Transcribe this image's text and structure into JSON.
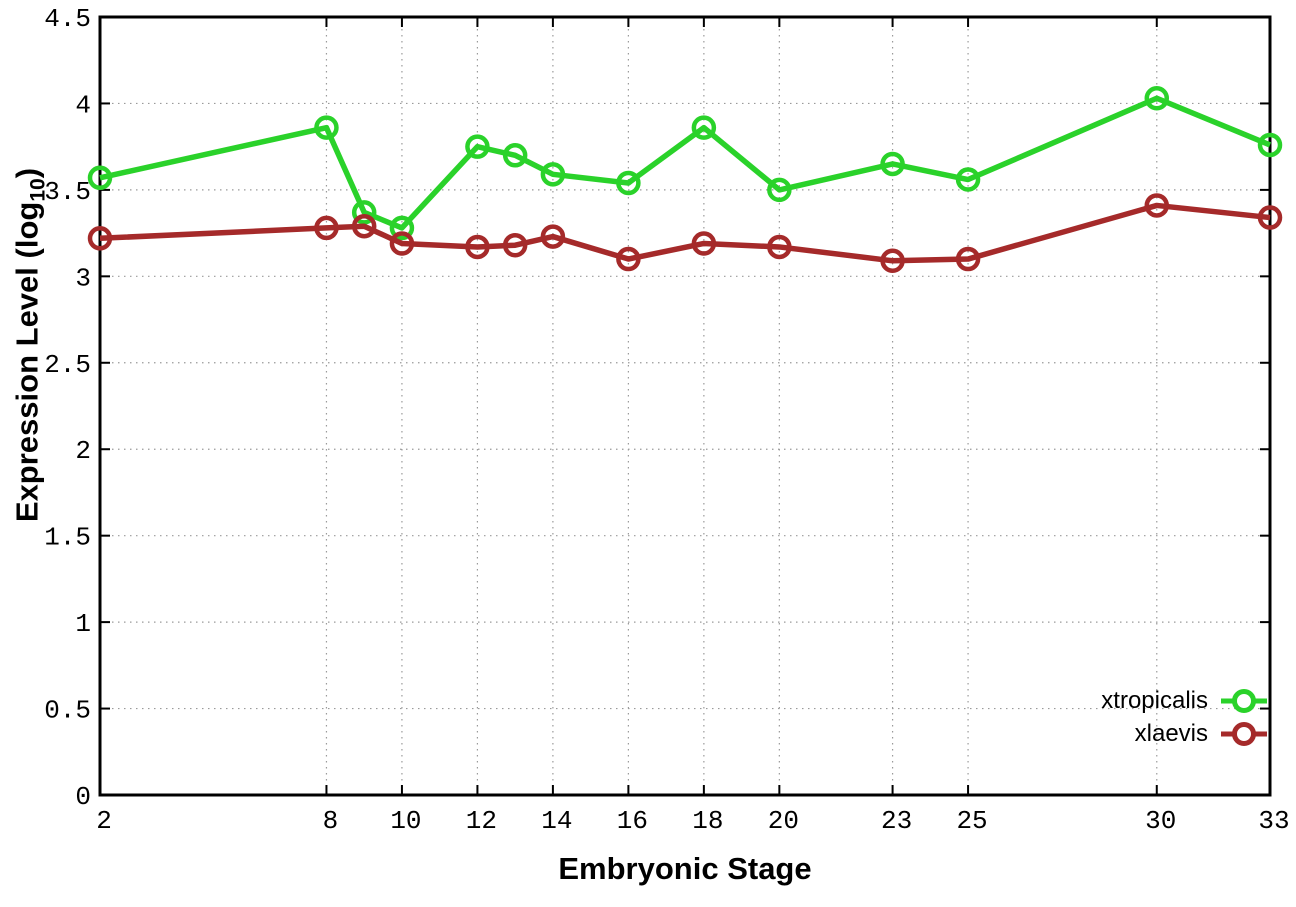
{
  "chart_data": {
    "type": "line",
    "title": "",
    "xlabel": "Embryonic Stage",
    "ylabel": "Expression Level (log10)",
    "ylabel_parts": {
      "main": "Expression Level (log",
      "sub": "10",
      "close": ")"
    },
    "x": [
      2,
      8,
      9,
      10,
      12,
      13,
      14,
      16,
      18,
      20,
      23,
      25,
      30,
      33
    ],
    "xlim": [
      2,
      33
    ],
    "ylim": [
      0,
      4.5
    ],
    "xtick_values": [
      2,
      8,
      10,
      12,
      14,
      16,
      18,
      20,
      23,
      25,
      30,
      33
    ],
    "xtick_labels": [
      "2",
      "8",
      "10",
      "12",
      "14",
      "16",
      "18",
      "20",
      "23",
      "25",
      "30",
      "33"
    ],
    "ytick_values": [
      0,
      0.5,
      1,
      1.5,
      2,
      2.5,
      3,
      3.5,
      4,
      4.5
    ],
    "ytick_labels": [
      "0",
      "0.5",
      "1",
      "1.5",
      "2",
      "2.5",
      "3",
      "3.5",
      "4",
      "4.5"
    ],
    "grid": true,
    "legend_position": "bottom-right",
    "marker": "open-circle",
    "series": [
      {
        "name": "xtropicalis",
        "color": "#2ad22a",
        "values": [
          3.57,
          3.86,
          3.37,
          3.28,
          3.75,
          3.7,
          3.59,
          3.54,
          3.86,
          3.5,
          3.65,
          3.56,
          4.03,
          3.76
        ]
      },
      {
        "name": "xlaevis",
        "color": "#a52a2a",
        "values": [
          3.22,
          3.28,
          3.29,
          3.19,
          3.17,
          3.18,
          3.23,
          3.1,
          3.19,
          3.17,
          3.09,
          3.1,
          3.41,
          3.34
        ]
      }
    ],
    "colors": {
      "axis": "#000000",
      "grid": "#9a9a9a",
      "background": "#ffffff",
      "text": "#000000"
    }
  }
}
